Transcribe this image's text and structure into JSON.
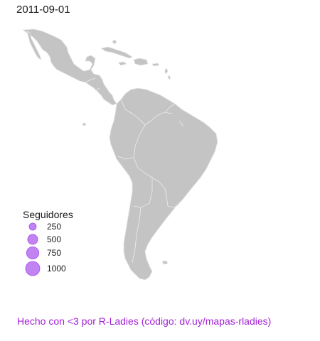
{
  "frame": {
    "date": "2011-09-01"
  },
  "map": {
    "region": "Latin America",
    "land_color": "#c4c4c4",
    "border_color": "#ececec"
  },
  "legend": {
    "title": "Seguidores",
    "marker_color": "#a64ded",
    "items": [
      {
        "label": "250",
        "value": 250
      },
      {
        "label": "500",
        "value": 500
      },
      {
        "label": "750",
        "value": 750
      },
      {
        "label": "1000",
        "value": 1000
      }
    ]
  },
  "footer": {
    "text": "Hecho con <3 por R-Ladies (código: dv.uy/mapas-rladies)",
    "color": "#a11fd6"
  }
}
